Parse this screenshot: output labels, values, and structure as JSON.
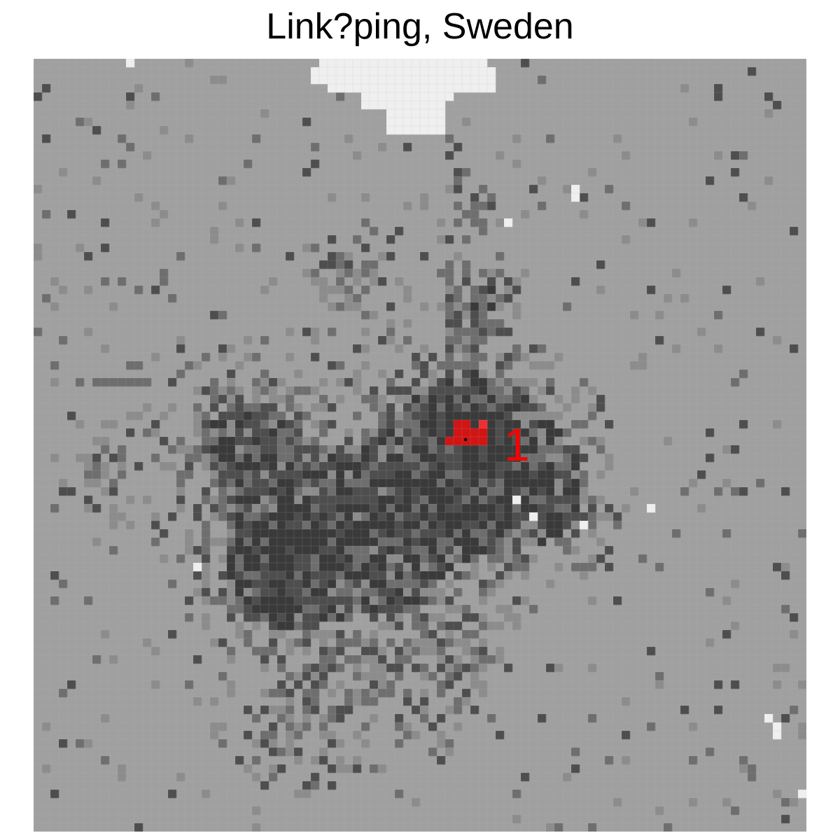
{
  "title": "Link?ping, Sweden",
  "map": {
    "grid_cols": 92,
    "grid_rows": 92,
    "background_color": "#a0a0a0",
    "gridline_color": "#b4b4b4",
    "levels": {
      "water": "#efefef",
      "low": "#8c8c8c",
      "medium": "#6e6e6e",
      "high": "#4e4e4e",
      "highest": "#3a3a3a",
      "selected": "#d11414",
      "selected_edge": "#ee3030"
    },
    "marker": {
      "label": "1",
      "label_color": "#ff0000",
      "point_color": "#000000"
    }
  }
}
